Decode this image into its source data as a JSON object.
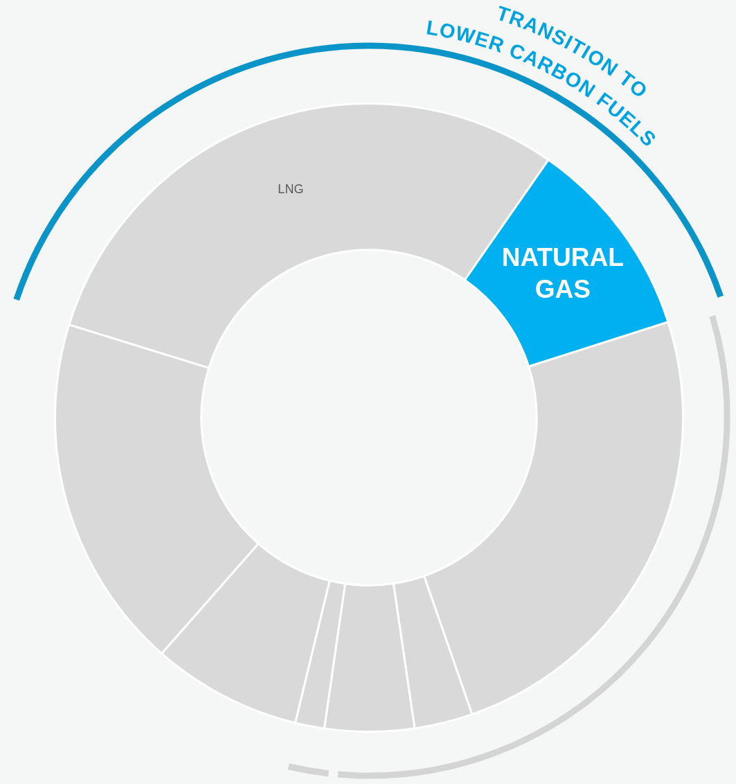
{
  "chart_data": {
    "type": "donut",
    "categories": [
      "LNG",
      "NATURAL GAS",
      null,
      null,
      null,
      null,
      null,
      null
    ],
    "values": [
      29.9,
      10.4,
      24.6,
      3.0,
      4.6,
      1.5,
      7.7,
      18.3
    ],
    "colors": [
      "#d9d9d9",
      "#00b0f0",
      "#d9d9d9",
      "#d9d9d9",
      "#d9d9d9",
      "#d9d9d9",
      "#d9d9d9",
      "#d9d9d9"
    ],
    "annotations": [
      "TRANSITION TO LOWER CARBON FUELS"
    ]
  }
}
